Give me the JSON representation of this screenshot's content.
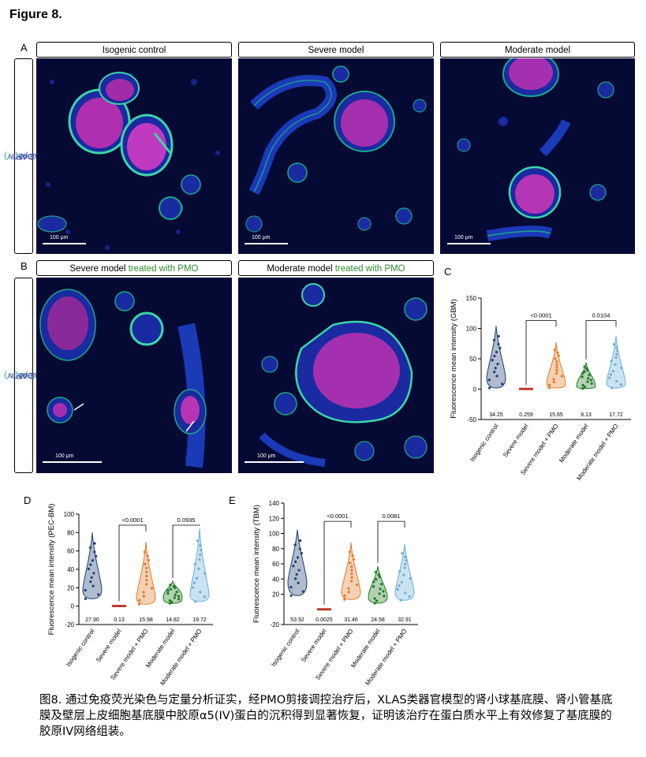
{
  "figure_title": "Figure 8.",
  "panel_letters": {
    "a": "A",
    "b": "B",
    "c": "C",
    "d": "D",
    "e": "E"
  },
  "row_a_labels": [
    "Isogenic control",
    "Severe model",
    "Moderate model"
  ],
  "row_b_labels": [
    {
      "prefix": "Severe model ",
      "suffix": "treated with PMO"
    },
    {
      "prefix": "Moderate model ",
      "suffix": "treated with PMO"
    }
  ],
  "side_label": {
    "nephrin": "Nephrin",
    "col": "Col α5(IV)",
    "dapi": "DAPI"
  },
  "scale_label": "100 μm",
  "colors": {
    "background": "#050a35",
    "nephrin": "#c23bb5",
    "col": "#1aa889",
    "dapi": "#2a3ab8",
    "isogenic": "#1e3f73",
    "severe": "#c0392b",
    "severe_pmo": "#e07b2a",
    "moderate": "#1f7a1f",
    "moderate_pmo": "#6aaed6"
  },
  "caption": "图8. 通过免疫荧光染色与定量分析证实，经PMO剪接调控治疗后，XLAS类器官模型的肾小球基底膜、肾小管基底膜及壁层上皮细胞基底膜中胶原α5(IV)蛋白的沉积得到显著恢复，证明该治疗在蛋白质水平上有效修复了基底膜的胶原IV网络组装。",
  "chart_data": [
    {
      "id": "C",
      "type": "violin",
      "ylabel": "Fluorescence mean intensity (GBM)",
      "ylim": [
        -50,
        150
      ],
      "yticks": [
        -50,
        0,
        50,
        100,
        150
      ],
      "categories": [
        "Isogenic control",
        "Severe model",
        "Severe model + PMO",
        "Moderate model",
        "Moderate model + PMO"
      ],
      "means": [
        "34.25",
        "0.259",
        "15.65",
        "8.13",
        "17.72"
      ],
      "approx_max": [
        104,
        2,
        77,
        44,
        88
      ],
      "approx_min": [
        2,
        -1,
        2,
        1,
        2
      ],
      "comparisons": [
        {
          "from": 1,
          "to": 2,
          "p": "<0.0001",
          "y": 113
        },
        {
          "from": 3,
          "to": 4,
          "p": "0.0104",
          "y": 113
        }
      ]
    },
    {
      "id": "D",
      "type": "violin",
      "ylabel": "Fluorescence mean intensity (PEC-BM)",
      "ylim": [
        -20,
        100
      ],
      "yticks": [
        -20,
        0,
        20,
        40,
        60,
        80,
        100
      ],
      "categories": [
        "Isogenic control",
        "Severe model",
        "Severe model + PMO",
        "Moderate model",
        "Moderate model + PMO"
      ],
      "means": [
        "27.90",
        "0.13",
        "15.98",
        "14.82",
        "19.72"
      ],
      "approx_max": [
        80,
        2,
        70,
        27,
        84
      ],
      "approx_min": [
        8,
        -1,
        2,
        3,
        5
      ],
      "comparisons": [
        {
          "from": 1,
          "to": 2,
          "p": "<0.0001",
          "y": 88
        },
        {
          "from": 3,
          "to": 4,
          "p": "0.0935",
          "y": 88
        }
      ]
    },
    {
      "id": "E",
      "type": "violin",
      "ylabel": "Fluorescence mean intensity (TBM)",
      "ylim": [
        -20,
        140
      ],
      "yticks": [
        -20,
        20,
        40,
        60,
        80,
        100,
        120,
        140
      ],
      "categories": [
        "Isogenic control",
        "Severe model",
        "Severe model + PMO",
        "Moderate model",
        "Moderate model + PMO"
      ],
      "means": [
        "53.92",
        "0.0025",
        "31.46",
        "24.58",
        "32.91"
      ],
      "approx_max": [
        105,
        2,
        88,
        57,
        86
      ],
      "approx_min": [
        18,
        -1,
        13,
        8,
        12
      ],
      "comparisons": [
        {
          "from": 1,
          "to": 2,
          "p": "<0.0001",
          "y": 116
        },
        {
          "from": 3,
          "to": 4,
          "p": "0.0081",
          "y": 116
        }
      ]
    }
  ]
}
